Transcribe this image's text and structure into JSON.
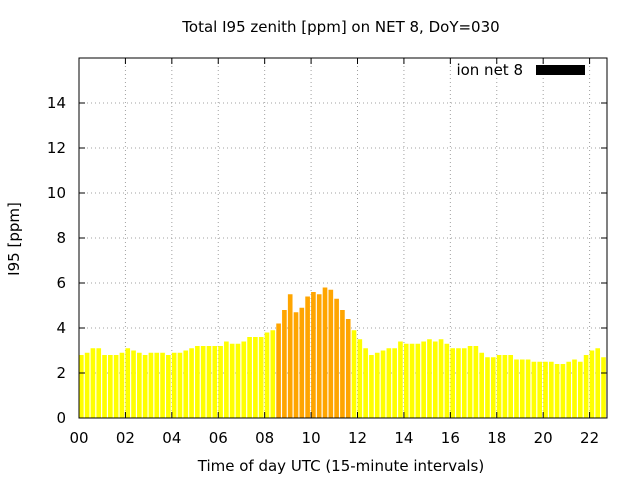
{
  "chart_data": {
    "type": "bar",
    "title": "Total I95 zenith [ppm] on NET 8, DoY=030",
    "xlabel": "Time of day UTC (15-minute intervals)",
    "ylabel": "I95 [ppm]",
    "xlim": [
      0,
      22.75
    ],
    "ylim": [
      0,
      16
    ],
    "xticks": [
      "00",
      "02",
      "04",
      "06",
      "08",
      "10",
      "12",
      "14",
      "16",
      "18",
      "20",
      "22"
    ],
    "xtick_values": [
      0,
      2,
      4,
      6,
      8,
      10,
      12,
      14,
      16,
      18,
      20,
      22
    ],
    "yticks": [
      "0",
      "2",
      "4",
      "6",
      "8",
      "10",
      "12",
      "14"
    ],
    "ytick_values": [
      0,
      2,
      4,
      6,
      8,
      10,
      12,
      14
    ],
    "grid": true,
    "legend": {
      "position": "top-right",
      "label": "ion net 8",
      "color": "#000000"
    },
    "colors": {
      "low": "#ffff00",
      "mid": "#ffa500"
    },
    "bar_width_hours": 0.2,
    "series": [
      {
        "x": [
          0.0,
          0.25,
          0.5,
          0.75,
          1.0,
          1.25,
          1.5,
          1.75,
          2.0,
          2.25,
          2.5,
          2.75,
          3.0,
          3.25,
          3.5,
          3.75,
          4.0,
          4.25,
          4.5,
          4.75,
          5.0,
          5.25,
          5.5,
          5.75,
          6.0,
          6.25,
          6.5,
          6.75,
          7.0,
          7.25,
          7.5,
          7.75,
          8.0,
          8.25,
          8.5,
          8.75,
          9.0,
          9.25,
          9.5,
          9.75,
          10.0,
          10.25,
          10.5,
          10.75,
          11.0,
          11.25,
          11.5,
          11.75,
          12.0,
          12.25,
          12.5,
          12.75,
          13.0,
          13.25,
          13.5,
          13.75,
          14.0,
          14.25,
          14.5,
          14.75,
          15.0,
          15.25,
          15.5,
          15.75,
          16.0,
          16.25,
          16.5,
          16.75,
          17.0,
          17.25,
          17.5,
          17.75,
          18.0,
          18.25,
          18.5,
          18.75,
          19.0,
          19.25,
          19.5,
          19.75,
          20.0,
          20.25,
          20.5,
          20.75,
          21.0,
          21.25,
          21.5,
          21.75,
          22.0,
          22.25,
          22.5
        ],
        "values": [
          2.8,
          2.9,
          3.1,
          3.1,
          2.8,
          2.8,
          2.8,
          2.9,
          3.1,
          3.0,
          2.9,
          2.8,
          2.9,
          2.9,
          2.9,
          2.8,
          2.9,
          2.9,
          3.0,
          3.1,
          3.2,
          3.2,
          3.2,
          3.2,
          3.2,
          3.4,
          3.3,
          3.3,
          3.4,
          3.6,
          3.6,
          3.6,
          3.8,
          3.9,
          4.2,
          4.8,
          5.5,
          4.7,
          4.9,
          5.4,
          5.6,
          5.5,
          5.8,
          5.7,
          5.3,
          4.8,
          4.4,
          3.9,
          3.5,
          3.1,
          2.8,
          2.9,
          3.0,
          3.1,
          3.1,
          3.4,
          3.3,
          3.3,
          3.3,
          3.4,
          3.5,
          3.4,
          3.5,
          3.3,
          3.1,
          3.1,
          3.1,
          3.2,
          3.2,
          2.9,
          2.7,
          2.7,
          2.8,
          2.8,
          2.8,
          2.6,
          2.6,
          2.6,
          2.5,
          2.5,
          2.5,
          2.5,
          2.4,
          2.4,
          2.5,
          2.6,
          2.5,
          2.8,
          3.0,
          3.1,
          2.7
        ]
      }
    ]
  }
}
